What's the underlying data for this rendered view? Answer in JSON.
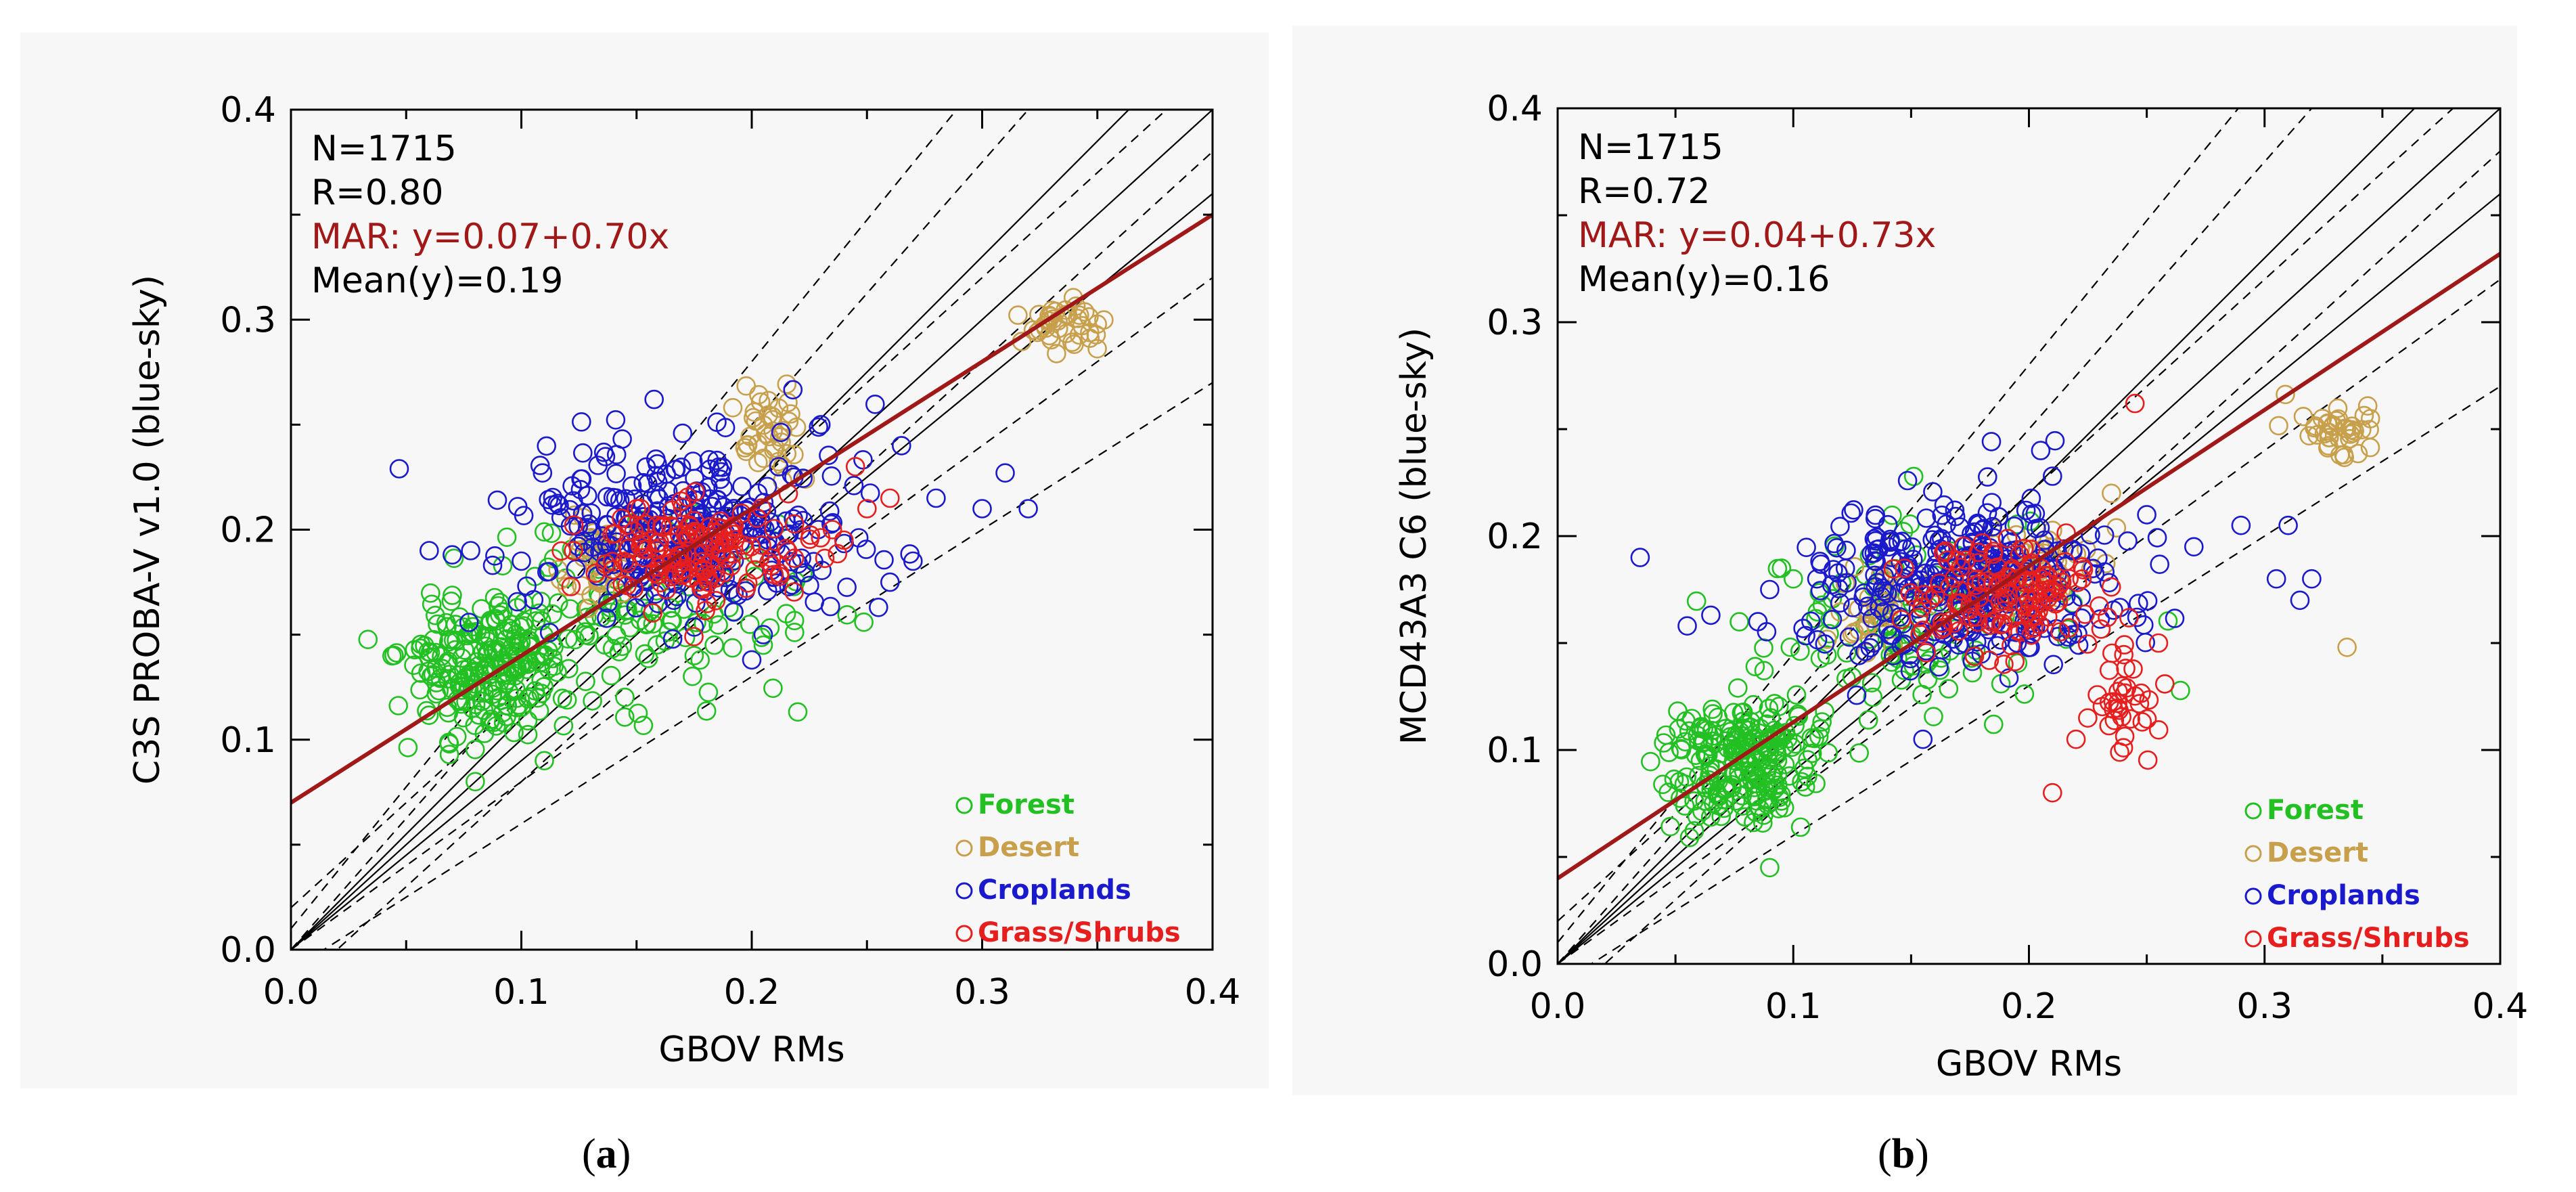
{
  "colors": {
    "forest": "#22c022",
    "desert": "#c8a04c",
    "croplands": "#1a1acc",
    "grass": "#e61e1e",
    "mar": "#a01818",
    "axis": "#000000"
  },
  "chart_data": [
    {
      "type": "scatter",
      "id": "a",
      "caption": {
        "open": "(",
        "letter": "a",
        "close": ")"
      },
      "xlabel": "GBOV RMs",
      "ylabel": "C3S PROBA-V v1.0 (blue-sky)",
      "xlim": [
        0.0,
        0.4
      ],
      "ylim": [
        0.0,
        0.4
      ],
      "xticks": [
        "0.0",
        "0.1",
        "0.2",
        "0.3",
        "0.4"
      ],
      "yticks": [
        "0.0",
        "0.1",
        "0.2",
        "0.3",
        "0.4"
      ],
      "stats": {
        "n": "N=1715",
        "r": "R=0.80",
        "mar": "MAR:  y=0.07+0.70x",
        "mean": "Mean(y)=0.19"
      },
      "regression": {
        "intercept": 0.07,
        "slope": 0.7
      },
      "legend": [
        "Forest",
        "Desert",
        "Croplands",
        "Grass/Shrubs"
      ],
      "clusters": [
        {
          "class": "forest",
          "n": 240,
          "x": 0.085,
          "y": 0.135,
          "sx": 0.018,
          "sy": 0.017,
          "seed": 11
        },
        {
          "class": "forest",
          "n": 110,
          "x": 0.155,
          "y": 0.165,
          "sx": 0.035,
          "sy": 0.022,
          "seed": 12
        },
        {
          "class": "desert",
          "n": 40,
          "x": 0.335,
          "y": 0.298,
          "sx": 0.008,
          "sy": 0.006,
          "seed": 13
        },
        {
          "class": "desert",
          "n": 40,
          "x": 0.21,
          "y": 0.245,
          "sx": 0.008,
          "sy": 0.012,
          "seed": 14
        },
        {
          "class": "desert",
          "n": 40,
          "x": 0.135,
          "y": 0.19,
          "sx": 0.008,
          "sy": 0.01,
          "seed": 15
        },
        {
          "class": "croplands",
          "n": 320,
          "x": 0.175,
          "y": 0.2,
          "sx": 0.035,
          "sy": 0.02,
          "seed": 16
        },
        {
          "class": "grass",
          "n": 150,
          "x": 0.18,
          "y": 0.19,
          "sx": 0.025,
          "sy": 0.012,
          "seed": 17
        }
      ],
      "outliers": [
        {
          "class": "croplands",
          "x": 0.047,
          "y": 0.229
        },
        {
          "class": "croplands",
          "x": 0.06,
          "y": 0.19
        },
        {
          "class": "croplands",
          "x": 0.07,
          "y": 0.188
        },
        {
          "class": "croplands",
          "x": 0.078,
          "y": 0.19
        },
        {
          "class": "croplands",
          "x": 0.1,
          "y": 0.185
        },
        {
          "class": "croplands",
          "x": 0.31,
          "y": 0.227
        },
        {
          "class": "croplands",
          "x": 0.32,
          "y": 0.21
        },
        {
          "class": "croplands",
          "x": 0.3,
          "y": 0.21
        },
        {
          "class": "croplands",
          "x": 0.28,
          "y": 0.215
        },
        {
          "class": "croplands",
          "x": 0.27,
          "y": 0.185
        },
        {
          "class": "croplands",
          "x": 0.26,
          "y": 0.175
        },
        {
          "class": "croplands",
          "x": 0.255,
          "y": 0.163
        },
        {
          "class": "croplands",
          "x": 0.205,
          "y": 0.15
        },
        {
          "class": "croplands",
          "x": 0.2,
          "y": 0.138
        },
        {
          "class": "croplands",
          "x": 0.23,
          "y": 0.25
        },
        {
          "class": "croplands",
          "x": 0.265,
          "y": 0.24
        },
        {
          "class": "forest",
          "x": 0.08,
          "y": 0.08
        },
        {
          "class": "forest",
          "x": 0.11,
          "y": 0.09
        },
        {
          "class": "forest",
          "x": 0.175,
          "y": 0.14
        },
        {
          "class": "forest",
          "x": 0.205,
          "y": 0.145
        },
        {
          "class": "forest",
          "x": 0.215,
          "y": 0.16
        },
        {
          "class": "grass",
          "x": 0.245,
          "y": 0.23
        },
        {
          "class": "grass",
          "x": 0.25,
          "y": 0.21
        },
        {
          "class": "grass",
          "x": 0.235,
          "y": 0.2
        },
        {
          "class": "grass",
          "x": 0.24,
          "y": 0.195
        },
        {
          "class": "grass",
          "x": 0.26,
          "y": 0.215
        },
        {
          "class": "grass",
          "x": 0.15,
          "y": 0.21
        }
      ]
    },
    {
      "type": "scatter",
      "id": "b",
      "caption": {
        "open": "(",
        "letter": "b",
        "close": ")"
      },
      "xlabel": "GBOV RMs",
      "ylabel": "MCD43A3 C6 (blue-sky)",
      "xlim": [
        0.0,
        0.4
      ],
      "ylim": [
        0.0,
        0.4
      ],
      "xticks": [
        "0.0",
        "0.1",
        "0.2",
        "0.3",
        "0.4"
      ],
      "yticks": [
        "0.0",
        "0.1",
        "0.2",
        "0.3",
        "0.4"
      ],
      "stats": {
        "n": "N=1715",
        "r": "R=0.72",
        "mar": "MAR:  y=0.04+0.73x",
        "mean": "Mean(y)=0.16"
      },
      "regression": {
        "intercept": 0.04,
        "slope": 0.73
      },
      "legend": [
        "Forest",
        "Desert",
        "Croplands",
        "Grass/Shrubs"
      ],
      "clusters": [
        {
          "class": "forest",
          "n": 230,
          "x": 0.08,
          "y": 0.095,
          "sx": 0.016,
          "sy": 0.014,
          "seed": 21
        },
        {
          "class": "forest",
          "n": 110,
          "x": 0.155,
          "y": 0.16,
          "sx": 0.035,
          "sy": 0.02,
          "seed": 22
        },
        {
          "class": "desert",
          "n": 40,
          "x": 0.33,
          "y": 0.25,
          "sx": 0.008,
          "sy": 0.006,
          "seed": 23
        },
        {
          "class": "desert",
          "n": 50,
          "x": 0.2,
          "y": 0.185,
          "sx": 0.015,
          "sy": 0.012,
          "seed": 24
        },
        {
          "class": "desert",
          "n": 35,
          "x": 0.135,
          "y": 0.168,
          "sx": 0.008,
          "sy": 0.01,
          "seed": 25
        },
        {
          "class": "croplands",
          "n": 320,
          "x": 0.175,
          "y": 0.178,
          "sx": 0.035,
          "sy": 0.02,
          "seed": 26
        },
        {
          "class": "grass",
          "n": 140,
          "x": 0.19,
          "y": 0.172,
          "sx": 0.02,
          "sy": 0.012,
          "seed": 27
        },
        {
          "class": "grass",
          "n": 35,
          "x": 0.24,
          "y": 0.125,
          "sx": 0.007,
          "sy": 0.01,
          "seed": 28
        }
      ],
      "outliers": [
        {
          "class": "croplands",
          "x": 0.035,
          "y": 0.19
        },
        {
          "class": "croplands",
          "x": 0.055,
          "y": 0.158
        },
        {
          "class": "croplands",
          "x": 0.065,
          "y": 0.163
        },
        {
          "class": "croplands",
          "x": 0.085,
          "y": 0.16
        },
        {
          "class": "croplands",
          "x": 0.09,
          "y": 0.175
        },
        {
          "class": "croplands",
          "x": 0.11,
          "y": 0.18
        },
        {
          "class": "croplands",
          "x": 0.31,
          "y": 0.205
        },
        {
          "class": "croplands",
          "x": 0.305,
          "y": 0.18
        },
        {
          "class": "croplands",
          "x": 0.32,
          "y": 0.18
        },
        {
          "class": "croplands",
          "x": 0.315,
          "y": 0.17
        },
        {
          "class": "croplands",
          "x": 0.29,
          "y": 0.205
        },
        {
          "class": "croplands",
          "x": 0.27,
          "y": 0.195
        },
        {
          "class": "croplands",
          "x": 0.25,
          "y": 0.21
        },
        {
          "class": "croplands",
          "x": 0.205,
          "y": 0.24
        },
        {
          "class": "croplands",
          "x": 0.21,
          "y": 0.228
        },
        {
          "class": "croplands",
          "x": 0.155,
          "y": 0.105
        },
        {
          "class": "croplands",
          "x": 0.195,
          "y": 0.15
        },
        {
          "class": "desert",
          "x": 0.335,
          "y": 0.148
        },
        {
          "class": "desert",
          "x": 0.235,
          "y": 0.22
        },
        {
          "class": "forest",
          "x": 0.09,
          "y": 0.045
        },
        {
          "class": "forest",
          "x": 0.095,
          "y": 0.185
        },
        {
          "class": "forest",
          "x": 0.1,
          "y": 0.18
        },
        {
          "class": "forest",
          "x": 0.185,
          "y": 0.112
        },
        {
          "class": "grass",
          "x": 0.245,
          "y": 0.262
        },
        {
          "class": "grass",
          "x": 0.21,
          "y": 0.08
        },
        {
          "class": "grass",
          "x": 0.22,
          "y": 0.105
        },
        {
          "class": "grass",
          "x": 0.255,
          "y": 0.15
        }
      ]
    }
  ]
}
